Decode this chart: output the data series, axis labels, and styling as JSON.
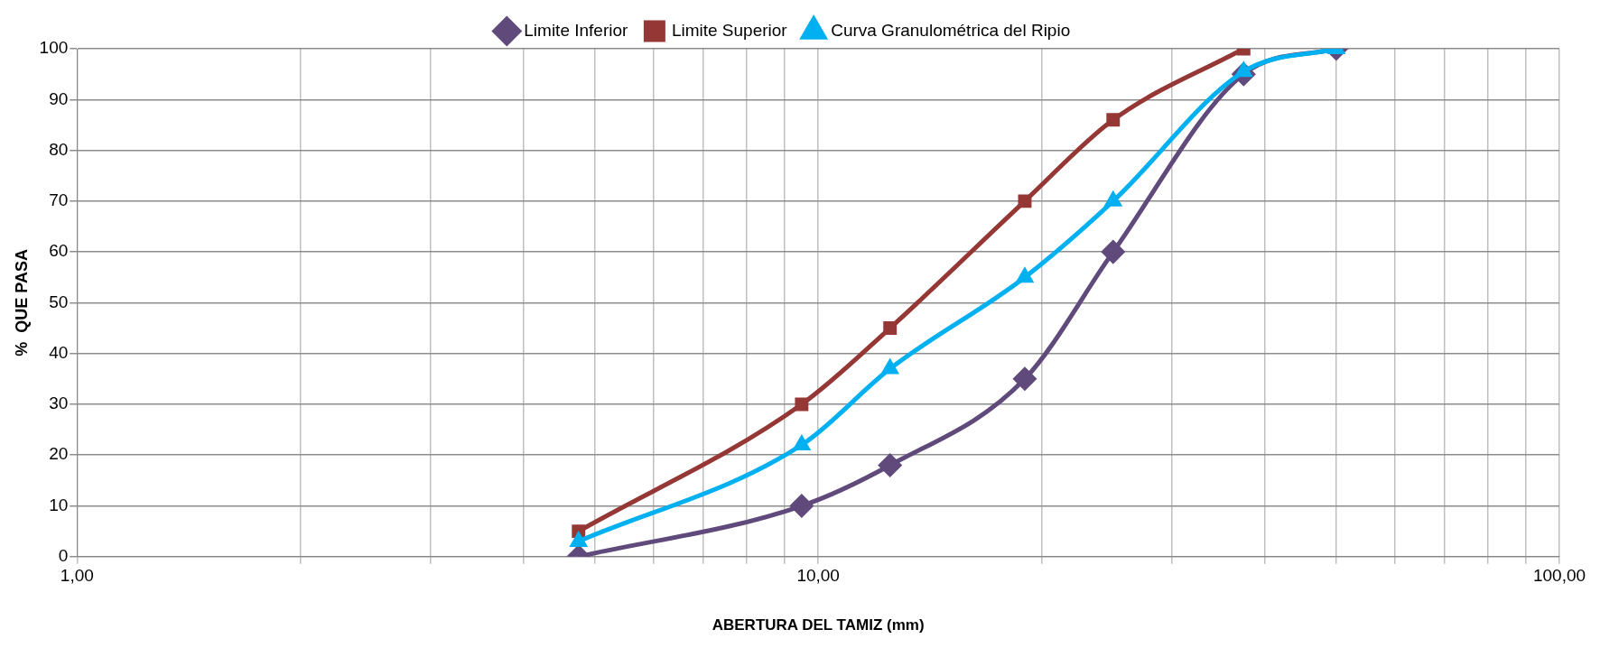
{
  "chart_data": {
    "type": "line",
    "xlabel": "ABERTURA DEL TAMIZ (mm)",
    "ylabel": "%  QUE PASA",
    "log": "x",
    "grid": true,
    "legend": "top",
    "line_style": "solid",
    "x": [
      4.75,
      9.5,
      12.5,
      19,
      25,
      37.5,
      50
    ],
    "series": [
      {
        "name": "Limite Inferior",
        "color": "#604a7b",
        "marker": "diamond",
        "values": [
          0,
          10,
          18,
          35,
          60,
          95,
          100
        ]
      },
      {
        "name": "Limite Superior",
        "color": "#953735",
        "marker": "square",
        "values": [
          5,
          30,
          45,
          70,
          86,
          100,
          null
        ]
      },
      {
        "name": "Curva Granulométrica del Ripio",
        "color": "#00b0f0",
        "marker": "triangle",
        "values": [
          3,
          22,
          37,
          55,
          70,
          95.5,
          100
        ]
      }
    ],
    "xlim": [
      1,
      100
    ],
    "xticks": [
      {
        "value": 1,
        "label": "1,00"
      },
      {
        "value": 2,
        "label": null
      },
      {
        "value": 3,
        "label": null
      },
      {
        "value": 4,
        "label": null
      },
      {
        "value": 5,
        "label": null
      },
      {
        "value": 6,
        "label": null
      },
      {
        "value": 7,
        "label": null
      },
      {
        "value": 8,
        "label": null
      },
      {
        "value": 9,
        "label": null
      },
      {
        "value": 10,
        "label": "10,00"
      },
      {
        "value": 20,
        "label": null
      },
      {
        "value": 30,
        "label": null
      },
      {
        "value": 40,
        "label": null
      },
      {
        "value": 50,
        "label": null
      },
      {
        "value": 60,
        "label": null
      },
      {
        "value": 70,
        "label": null
      },
      {
        "value": 80,
        "label": null
      },
      {
        "value": 90,
        "label": null
      },
      {
        "value": 100,
        "label": "100,00"
      }
    ],
    "ylim": [
      0,
      100
    ],
    "yticks": [
      0,
      10,
      20,
      30,
      40,
      50,
      60,
      70,
      80,
      90,
      100
    ]
  }
}
